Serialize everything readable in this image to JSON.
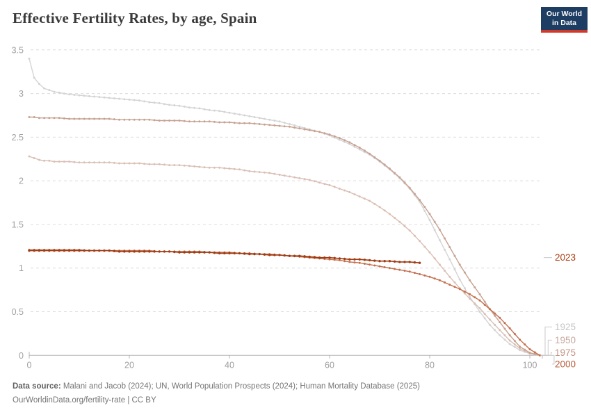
{
  "header": {
    "title": "Effective Fertility Rates, by age, Spain",
    "logo": {
      "line1": "Our World",
      "line2": "in Data",
      "bg": "#1d3d63",
      "accent": "#cf3a2b"
    }
  },
  "footer": {
    "source_label": "Data source:",
    "source_text": " Malani and Jacob (2024); UN, World Population Prospects (2024); Human Mortality Database (2025)",
    "line2": "OurWorldinData.org/fertility-rate | CC BY"
  },
  "chart_data": {
    "type": "line",
    "title": "Effective Fertility Rates, by age, Spain",
    "xlabel": "",
    "ylabel": "",
    "xlim": [
      0,
      102.5
    ],
    "ylim": [
      0,
      3.5
    ],
    "x_ticks": [
      0,
      20,
      40,
      60,
      80,
      100
    ],
    "y_ticks": [
      0,
      0.5,
      1,
      1.5,
      2,
      2.5,
      3,
      3.5
    ],
    "grid": "horizontal-dashed",
    "legend_position": "right-of-line-ends",
    "colors": {
      "grid": "#dcdcdc",
      "axis": "#b5b5b5",
      "tick_text": "#a0a0a0",
      "connector": "#c9c9c9"
    },
    "series": [
      {
        "name": "1925",
        "color": "#d4d4d4",
        "label_color": "#c4c4c4",
        "label_value": 0.325,
        "points": [
          [
            0,
            3.4
          ],
          [
            1,
            3.18
          ],
          [
            2,
            3.11
          ],
          [
            3,
            3.06
          ],
          [
            4,
            3.04
          ],
          [
            5,
            3.02
          ],
          [
            6,
            3.01
          ],
          [
            7,
            3.0
          ],
          [
            8,
            2.99
          ],
          [
            10,
            2.98
          ],
          [
            12,
            2.97
          ],
          [
            14,
            2.96
          ],
          [
            16,
            2.95
          ],
          [
            18,
            2.94
          ],
          [
            20,
            2.93
          ],
          [
            22,
            2.92
          ],
          [
            24,
            2.9
          ],
          [
            26,
            2.89
          ],
          [
            28,
            2.87
          ],
          [
            30,
            2.86
          ],
          [
            32,
            2.84
          ],
          [
            34,
            2.83
          ],
          [
            36,
            2.81
          ],
          [
            38,
            2.8
          ],
          [
            40,
            2.78
          ],
          [
            42,
            2.76
          ],
          [
            44,
            2.74
          ],
          [
            46,
            2.72
          ],
          [
            48,
            2.7
          ],
          [
            50,
            2.68
          ],
          [
            52,
            2.65
          ],
          [
            54,
            2.62
          ],
          [
            56,
            2.59
          ],
          [
            58,
            2.56
          ],
          [
            60,
            2.52
          ],
          [
            62,
            2.47
          ],
          [
            64,
            2.42
          ],
          [
            66,
            2.36
          ],
          [
            68,
            2.3
          ],
          [
            70,
            2.22
          ],
          [
            72,
            2.13
          ],
          [
            74,
            2.03
          ],
          [
            76,
            1.91
          ],
          [
            78,
            1.76
          ],
          [
            80,
            1.55
          ],
          [
            82,
            1.32
          ],
          [
            84,
            1.1
          ],
          [
            86,
            0.87
          ],
          [
            88,
            0.67
          ],
          [
            90,
            0.5
          ],
          [
            92,
            0.35
          ],
          [
            94,
            0.23
          ],
          [
            96,
            0.13
          ],
          [
            98,
            0.06
          ],
          [
            100,
            0.02
          ],
          [
            102,
            0.0
          ]
        ]
      },
      {
        "name": "1950",
        "color": "#dabfb5",
        "label_color": "#c6a89d",
        "label_value": 0.175,
        "points": [
          [
            0,
            2.28
          ],
          [
            1,
            2.26
          ],
          [
            2,
            2.24
          ],
          [
            3,
            2.23
          ],
          [
            4,
            2.23
          ],
          [
            5,
            2.22
          ],
          [
            6,
            2.22
          ],
          [
            8,
            2.22
          ],
          [
            10,
            2.21
          ],
          [
            12,
            2.21
          ],
          [
            14,
            2.21
          ],
          [
            16,
            2.21
          ],
          [
            18,
            2.2
          ],
          [
            20,
            2.2
          ],
          [
            22,
            2.2
          ],
          [
            24,
            2.19
          ],
          [
            26,
            2.19
          ],
          [
            28,
            2.18
          ],
          [
            30,
            2.18
          ],
          [
            32,
            2.17
          ],
          [
            34,
            2.16
          ],
          [
            36,
            2.15
          ],
          [
            38,
            2.15
          ],
          [
            40,
            2.14
          ],
          [
            42,
            2.13
          ],
          [
            44,
            2.11
          ],
          [
            46,
            2.1
          ],
          [
            48,
            2.09
          ],
          [
            50,
            2.07
          ],
          [
            52,
            2.05
          ],
          [
            54,
            2.03
          ],
          [
            56,
            2.01
          ],
          [
            58,
            1.98
          ],
          [
            60,
            1.95
          ],
          [
            62,
            1.91
          ],
          [
            64,
            1.87
          ],
          [
            66,
            1.82
          ],
          [
            68,
            1.77
          ],
          [
            70,
            1.7
          ],
          [
            72,
            1.62
          ],
          [
            74,
            1.53
          ],
          [
            76,
            1.43
          ],
          [
            78,
            1.31
          ],
          [
            80,
            1.18
          ],
          [
            82,
            1.04
          ],
          [
            84,
            0.9
          ],
          [
            86,
            0.77
          ],
          [
            88,
            0.65
          ],
          [
            90,
            0.54
          ],
          [
            92,
            0.41
          ],
          [
            94,
            0.29
          ],
          [
            96,
            0.17
          ],
          [
            98,
            0.08
          ],
          [
            100,
            0.02
          ],
          [
            102,
            0.0
          ]
        ]
      },
      {
        "name": "1975",
        "color": "#c7a191",
        "label_color": "#c49384",
        "label_value": 0.03,
        "points": [
          [
            0,
            2.73
          ],
          [
            1,
            2.73
          ],
          [
            2,
            2.72
          ],
          [
            4,
            2.72
          ],
          [
            6,
            2.72
          ],
          [
            8,
            2.71
          ],
          [
            10,
            2.71
          ],
          [
            12,
            2.71
          ],
          [
            14,
            2.71
          ],
          [
            16,
            2.71
          ],
          [
            18,
            2.7
          ],
          [
            20,
            2.7
          ],
          [
            22,
            2.7
          ],
          [
            24,
            2.7
          ],
          [
            26,
            2.69
          ],
          [
            28,
            2.69
          ],
          [
            30,
            2.69
          ],
          [
            32,
            2.68
          ],
          [
            34,
            2.68
          ],
          [
            36,
            2.68
          ],
          [
            38,
            2.67
          ],
          [
            40,
            2.67
          ],
          [
            42,
            2.66
          ],
          [
            44,
            2.66
          ],
          [
            46,
            2.65
          ],
          [
            48,
            2.64
          ],
          [
            50,
            2.63
          ],
          [
            52,
            2.62
          ],
          [
            54,
            2.6
          ],
          [
            56,
            2.58
          ],
          [
            58,
            2.56
          ],
          [
            60,
            2.53
          ],
          [
            62,
            2.49
          ],
          [
            64,
            2.44
          ],
          [
            66,
            2.38
          ],
          [
            68,
            2.31
          ],
          [
            70,
            2.23
          ],
          [
            72,
            2.14
          ],
          [
            74,
            2.04
          ],
          [
            76,
            1.92
          ],
          [
            78,
            1.78
          ],
          [
            80,
            1.62
          ],
          [
            82,
            1.44
          ],
          [
            84,
            1.24
          ],
          [
            86,
            1.04
          ],
          [
            88,
            0.86
          ],
          [
            90,
            0.7
          ],
          [
            92,
            0.53
          ],
          [
            94,
            0.38
          ],
          [
            96,
            0.23
          ],
          [
            98,
            0.1
          ],
          [
            100,
            0.03
          ],
          [
            102,
            0.0
          ]
        ]
      },
      {
        "name": "2000",
        "color": "#c36f4d",
        "label_color": "#b85c38",
        "label_value": -0.1,
        "points": [
          [
            0,
            1.21
          ],
          [
            2,
            1.21
          ],
          [
            4,
            1.21
          ],
          [
            6,
            1.21
          ],
          [
            8,
            1.21
          ],
          [
            10,
            1.21
          ],
          [
            12,
            1.2
          ],
          [
            14,
            1.2
          ],
          [
            16,
            1.2
          ],
          [
            18,
            1.2
          ],
          [
            20,
            1.2
          ],
          [
            22,
            1.2
          ],
          [
            24,
            1.2
          ],
          [
            26,
            1.19
          ],
          [
            28,
            1.19
          ],
          [
            30,
            1.19
          ],
          [
            32,
            1.19
          ],
          [
            34,
            1.19
          ],
          [
            36,
            1.18
          ],
          [
            38,
            1.18
          ],
          [
            40,
            1.18
          ],
          [
            42,
            1.17
          ],
          [
            44,
            1.17
          ],
          [
            46,
            1.16
          ],
          [
            48,
            1.16
          ],
          [
            50,
            1.15
          ],
          [
            52,
            1.14
          ],
          [
            54,
            1.13
          ],
          [
            56,
            1.12
          ],
          [
            58,
            1.11
          ],
          [
            60,
            1.1
          ],
          [
            62,
            1.09
          ],
          [
            64,
            1.07
          ],
          [
            66,
            1.06
          ],
          [
            68,
            1.04
          ],
          [
            70,
            1.02
          ],
          [
            72,
            1.0
          ],
          [
            74,
            0.98
          ],
          [
            76,
            0.96
          ],
          [
            78,
            0.93
          ],
          [
            80,
            0.9
          ],
          [
            82,
            0.86
          ],
          [
            84,
            0.81
          ],
          [
            86,
            0.76
          ],
          [
            88,
            0.7
          ],
          [
            90,
            0.63
          ],
          [
            92,
            0.53
          ],
          [
            94,
            0.43
          ],
          [
            96,
            0.31
          ],
          [
            98,
            0.18
          ],
          [
            100,
            0.07
          ],
          [
            102,
            0.0
          ]
        ]
      },
      {
        "name": "2023",
        "color": "#a03b12",
        "label_color": "#ad3e0e",
        "label_value": 1.12,
        "points": [
          [
            0,
            1.2
          ],
          [
            2,
            1.2
          ],
          [
            4,
            1.2
          ],
          [
            6,
            1.2
          ],
          [
            8,
            1.2
          ],
          [
            10,
            1.2
          ],
          [
            12,
            1.2
          ],
          [
            14,
            1.2
          ],
          [
            16,
            1.2
          ],
          [
            18,
            1.19
          ],
          [
            20,
            1.19
          ],
          [
            22,
            1.19
          ],
          [
            24,
            1.19
          ],
          [
            26,
            1.19
          ],
          [
            28,
            1.19
          ],
          [
            30,
            1.18
          ],
          [
            32,
            1.18
          ],
          [
            34,
            1.18
          ],
          [
            36,
            1.18
          ],
          [
            38,
            1.17
          ],
          [
            40,
            1.17
          ],
          [
            42,
            1.17
          ],
          [
            44,
            1.16
          ],
          [
            46,
            1.16
          ],
          [
            48,
            1.15
          ],
          [
            50,
            1.15
          ],
          [
            52,
            1.14
          ],
          [
            54,
            1.14
          ],
          [
            56,
            1.13
          ],
          [
            58,
            1.12
          ],
          [
            60,
            1.12
          ],
          [
            62,
            1.11
          ],
          [
            64,
            1.1
          ],
          [
            66,
            1.1
          ],
          [
            68,
            1.09
          ],
          [
            70,
            1.08
          ],
          [
            72,
            1.08
          ],
          [
            74,
            1.07
          ],
          [
            76,
            1.07
          ],
          [
            78,
            1.06
          ]
        ]
      }
    ]
  }
}
